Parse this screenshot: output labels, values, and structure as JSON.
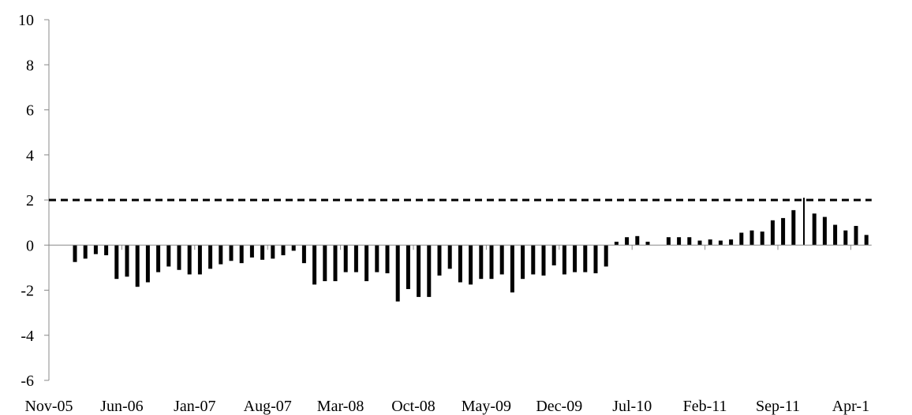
{
  "chart_data": {
    "type": "bar",
    "title": "",
    "xlabel": "",
    "ylabel": "",
    "ylim": [
      -6,
      10
    ],
    "yticks": [
      "10",
      "8",
      "6",
      "4",
      "2",
      "0",
      "-2",
      "-4",
      "-6"
    ],
    "xtick_labels": [
      "Nov-05",
      "Jun-06",
      "Jan-07",
      "Aug-07",
      "Mar-08",
      "Oct-08",
      "May-09",
      "Dec-09",
      "Jul-10",
      "Feb-11",
      "Sep-11",
      "Apr-1"
    ],
    "start_month": "Nov-05",
    "grid": false,
    "reference_line": {
      "value": 2,
      "style": "dashed"
    },
    "bar_color": "#000000",
    "values": [
      0,
      0,
      -0.75,
      -0.6,
      -0.4,
      -0.45,
      -1.5,
      -1.4,
      -1.85,
      -1.65,
      -1.2,
      -0.95,
      -1.1,
      -1.3,
      -1.3,
      -1.05,
      -0.85,
      -0.7,
      -0.8,
      -0.55,
      -0.65,
      -0.6,
      -0.45,
      -0.25,
      -0.8,
      -1.75,
      -1.6,
      -1.6,
      -1.2,
      -1.2,
      -1.6,
      -1.2,
      -1.25,
      -2.5,
      -1.95,
      -2.3,
      -2.3,
      -1.35,
      -1.05,
      -1.65,
      -1.75,
      -1.5,
      -1.5,
      -1.3,
      -2.1,
      -1.5,
      -1.3,
      -1.35,
      -0.9,
      -1.3,
      -1.2,
      -1.2,
      -1.25,
      -0.95,
      0.15,
      0.35,
      0.4,
      0.15,
      0,
      0.35,
      0.35,
      0.35,
      0.2,
      0.25,
      0.2,
      0.25,
      0.55,
      0.65,
      0.6,
      1.1,
      1.2,
      1.55,
      2.1,
      1.4,
      1.25,
      0.9,
      0.65,
      0.85,
      0.45
    ]
  }
}
